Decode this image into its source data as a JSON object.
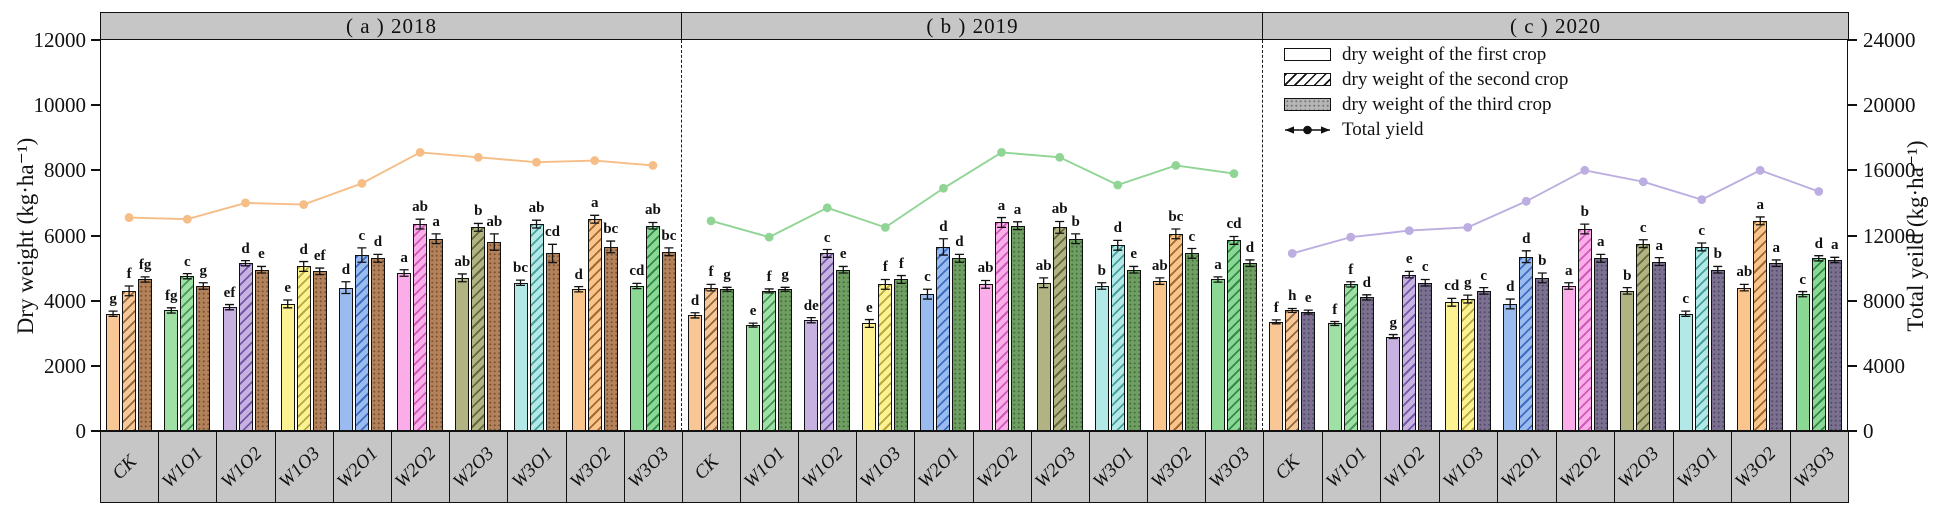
{
  "figure": {
    "left_axis": {
      "label": "Dry weight (kg·ha⁻¹)",
      "max": 12000,
      "ticks": [
        "0",
        "2000",
        "4000",
        "6000",
        "8000",
        "10000",
        "12000"
      ]
    },
    "right_axis": {
      "label": "Total yeild (kg·ha⁻¹)",
      "max": 24000,
      "ticks": [
        "0",
        "4000",
        "8000",
        "12000",
        "16000",
        "20000",
        "24000"
      ]
    },
    "legend": [
      {
        "swatch": "first",
        "label": "dry weight of the first crop"
      },
      {
        "swatch": "second",
        "label": "dry weight of the second crop"
      },
      {
        "swatch": "third",
        "label": "dry weight of the third crop"
      },
      {
        "swatch": "line",
        "label": "Total yield"
      }
    ]
  },
  "chart_data": {
    "type": "bar+line",
    "categories": [
      "CK",
      "W1O1",
      "W1O2",
      "W1O3",
      "W2O1",
      "W2O2",
      "W2O3",
      "W3O1",
      "W3O2",
      "W3O3"
    ],
    "group_colors": [
      {
        "base": "#f8c795",
        "hatch": "#8d6a42"
      },
      {
        "base": "#9fe0a4",
        "hatch": "#47975a"
      },
      {
        "base": "#c6b1e1",
        "hatch": "#6f58a8"
      },
      {
        "base": "#fcf292",
        "hatch": "#b5a83e"
      },
      {
        "base": "#99bbf0",
        "hatch": "#3e6cc0"
      },
      {
        "base": "#fbadea",
        "hatch": "#cf58b8"
      },
      {
        "base": "#b1b383",
        "hatch": "#64673b"
      },
      {
        "base": "#b2e9e6",
        "hatch": "#48a09d"
      },
      {
        "base": "#f9c58c",
        "hatch": "#a06a2e"
      },
      {
        "base": "#8bd794",
        "hatch": "#2f8a4a"
      }
    ],
    "panels": [
      {
        "key": "a",
        "title": "( a ) 2018",
        "line_color": "#f6bd86",
        "third_fill": "#b3815a",
        "third_dot": "#7a5432",
        "series": [
          {
            "name": "dry weight of the first crop",
            "axis": "left",
            "values": [
              3600,
              3700,
              3800,
              3900,
              4400,
              4850,
              4700,
              4550,
              4350,
              4450
            ],
            "errors": [
              80,
              80,
              80,
              120,
              180,
              100,
              120,
              80,
              80,
              80
            ],
            "letters": [
              "g",
              "fg",
              "ef",
              "e",
              "d",
              "a",
              "ab",
              "bc",
              "d",
              "cd"
            ]
          },
          {
            "name": "dry weight of the second crop",
            "axis": "left",
            "values": [
              4300,
              4750,
              5150,
              5050,
              5400,
              6350,
              6250,
              6350,
              6500,
              6300
            ],
            "errors": [
              150,
              80,
              80,
              150,
              220,
              150,
              120,
              120,
              120,
              100
            ],
            "letters": [
              "f",
              "c",
              "d",
              "d",
              "c",
              "ab",
              "b",
              "ab",
              "a",
              "ab"
            ]
          },
          {
            "name": "dry weight of the third crop",
            "axis": "left",
            "values": [
              4650,
              4450,
              4950,
              4900,
              5300,
              5900,
              5800,
              5450,
              5650,
              5500
            ],
            "errors": [
              80,
              100,
              100,
              100,
              120,
              150,
              250,
              280,
              180,
              120
            ],
            "letters": [
              "fg",
              "g",
              "e",
              "ef",
              "d",
              "a",
              "ab",
              "cd",
              "bc",
              "bc"
            ]
          },
          {
            "name": "Total yield",
            "axis": "right",
            "values": [
              13100,
              13000,
              14000,
              13900,
              15200,
              17100,
              16800,
              16500,
              16600,
              16300
            ]
          }
        ]
      },
      {
        "key": "b",
        "title": "( b ) 2019",
        "line_color": "#90d595",
        "third_fill": "#6f9e63",
        "third_dot": "#45703c",
        "series": [
          {
            "name": "dry weight of the first crop",
            "axis": "left",
            "values": [
              3550,
              3250,
              3400,
              3300,
              4200,
              4500,
              4550,
              4450,
              4600,
              4650
            ],
            "errors": [
              80,
              60,
              80,
              120,
              150,
              120,
              150,
              100,
              100,
              80
            ],
            "letters": [
              "d",
              "e",
              "de",
              "e",
              "c",
              "ab",
              "ab",
              "b",
              "ab",
              "a"
            ]
          },
          {
            "name": "dry weight of the second crop",
            "axis": "left",
            "values": [
              4400,
              4300,
              5450,
              4500,
              5650,
              6400,
              6250,
              5700,
              6050,
              5850
            ],
            "errors": [
              100,
              60,
              120,
              150,
              250,
              150,
              180,
              150,
              150,
              120
            ],
            "letters": [
              "f",
              "f",
              "c",
              "f",
              "d",
              "a",
              "ab",
              "d",
              "bc",
              "cd"
            ]
          },
          {
            "name": "dry weight of the third crop",
            "axis": "left",
            "values": [
              4350,
              4350,
              4950,
              4650,
              5300,
              6300,
              5900,
              4950,
              5450,
              5150
            ],
            "errors": [
              60,
              60,
              100,
              120,
              120,
              120,
              150,
              100,
              150,
              100
            ],
            "letters": [
              "g",
              "g",
              "e",
              "f",
              "d",
              "a",
              "b",
              "e",
              "c",
              "d"
            ]
          },
          {
            "name": "Total yield",
            "axis": "right",
            "values": [
              12900,
              11900,
              13700,
              12500,
              14900,
              17100,
              16800,
              15100,
              16300,
              15800
            ]
          }
        ]
      },
      {
        "key": "c",
        "title": "( c ) 2020",
        "line_color": "#bcaee0",
        "third_fill": "#7b7090",
        "third_dot": "#554b69",
        "series": [
          {
            "name": "dry weight of the first crop",
            "axis": "left",
            "values": [
              3350,
              3300,
              2900,
              3950,
              3900,
              4450,
              4300,
              3600,
              4400,
              4200
            ],
            "errors": [
              60,
              60,
              60,
              120,
              150,
              100,
              100,
              80,
              100,
              80
            ],
            "letters": [
              "f",
              "f",
              "g",
              "cd",
              "d",
              "a",
              "b",
              "c",
              "ab",
              "c"
            ]
          },
          {
            "name": "dry weight of the second crop",
            "axis": "left",
            "values": [
              3700,
              4500,
              4800,
              4050,
              5350,
              6200,
              5750,
              5650,
              6450,
              5300
            ],
            "errors": [
              60,
              80,
              100,
              120,
              180,
              150,
              120,
              120,
              120,
              80
            ],
            "letters": [
              "h",
              "f",
              "e",
              "g",
              "d",
              "b",
              "c",
              "c",
              "a",
              "d"
            ]
          },
          {
            "name": "dry weight of the third crop",
            "axis": "left",
            "values": [
              3650,
              4100,
              4550,
              4300,
              4700,
              5300,
              5200,
              4950,
              5150,
              5250
            ],
            "errors": [
              60,
              80,
              100,
              100,
              150,
              120,
              120,
              100,
              100,
              80
            ],
            "letters": [
              "e",
              "d",
              "c",
              "c",
              "b",
              "a",
              "a",
              "b",
              "a",
              "a"
            ]
          },
          {
            "name": "Total yield",
            "axis": "right",
            "values": [
              10900,
              11900,
              12300,
              12500,
              14100,
              16000,
              15300,
              14200,
              16000,
              14700
            ]
          }
        ]
      }
    ]
  }
}
